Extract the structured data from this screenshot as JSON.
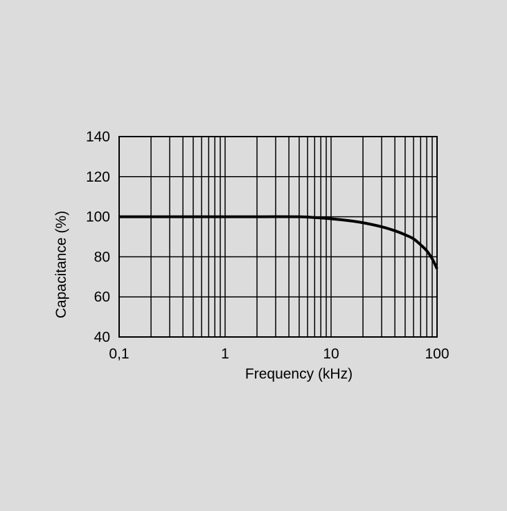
{
  "chart_data": {
    "type": "line",
    "title": "",
    "xlabel": "Frequency (kHz)",
    "ylabel": "Capacitance (%)",
    "x_scale": "log",
    "xlim": [
      0.1,
      100
    ],
    "ylim": [
      40,
      140
    ],
    "x_ticks": [
      {
        "value": 0.1,
        "label": "0,1"
      },
      {
        "value": 1,
        "label": "1"
      },
      {
        "value": 10,
        "label": "10"
      },
      {
        "value": 100,
        "label": "100"
      }
    ],
    "y_ticks": [
      {
        "value": 40,
        "label": "40"
      },
      {
        "value": 60,
        "label": "60"
      },
      {
        "value": 80,
        "label": "80"
      },
      {
        "value": 100,
        "label": "100"
      },
      {
        "value": 120,
        "label": "120"
      },
      {
        "value": 140,
        "label": "140"
      }
    ],
    "grid": true,
    "series": [
      {
        "x": [
          0.1,
          0.2,
          0.5,
          1,
          2,
          5,
          7,
          10,
          15,
          20,
          30,
          40,
          50,
          60,
          70,
          80,
          90,
          100
        ],
        "y": [
          100,
          100,
          100,
          100,
          100,
          100,
          99.6,
          99,
          98,
          97,
          95,
          93,
          91,
          89,
          86,
          83,
          79,
          74
        ]
      }
    ],
    "colors": {
      "line": "#000000",
      "grid": "#000000",
      "background": "#dcdcdc"
    }
  }
}
